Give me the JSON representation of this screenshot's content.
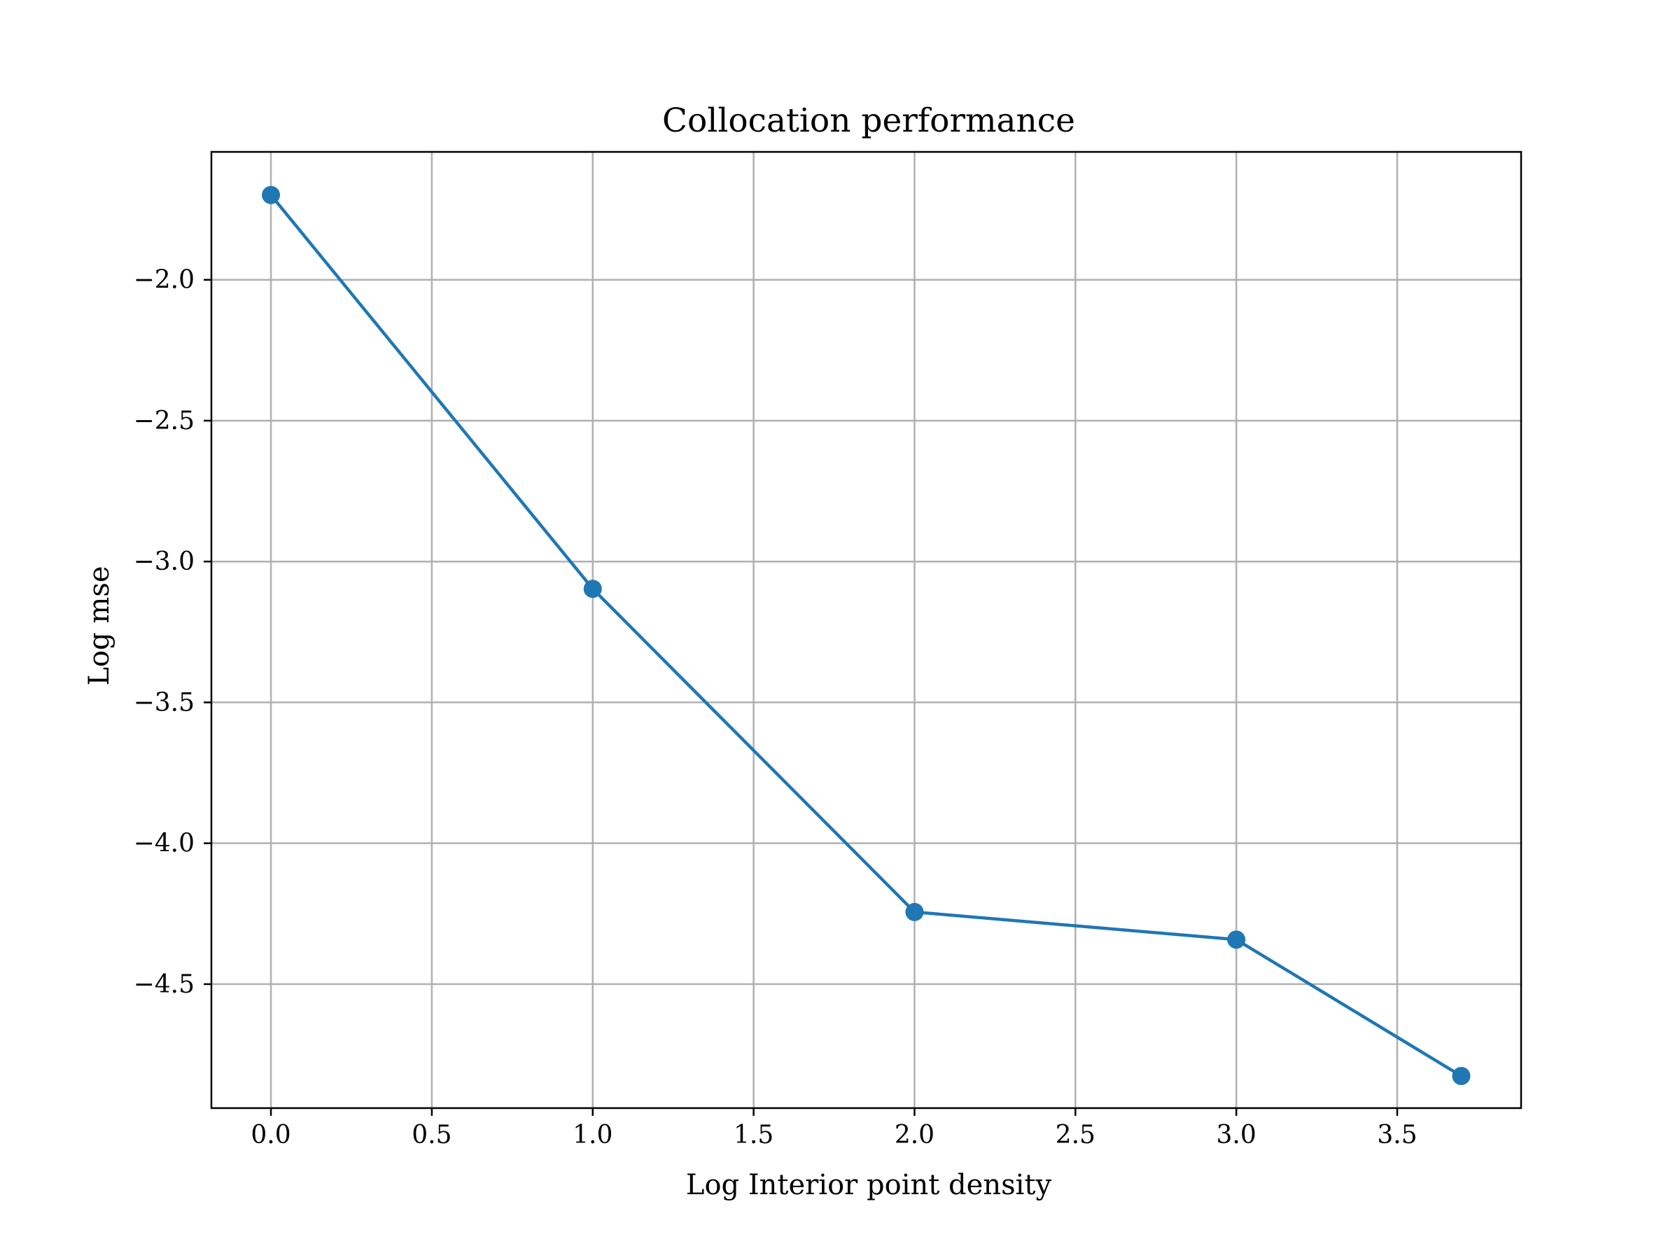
{
  "chart_data": {
    "type": "line",
    "title": "Collocation performance",
    "xlabel": "Log Interior point density",
    "ylabel": "Log mse",
    "xlim": [
      -0.185,
      3.885
    ],
    "ylim": [
      -4.94,
      -1.546
    ],
    "xticks": [
      0.0,
      0.5,
      1.0,
      1.5,
      2.0,
      2.5,
      3.0,
      3.5
    ],
    "xtick_labels": [
      "0.0",
      "0.5",
      "1.0",
      "1.5",
      "2.0",
      "2.5",
      "3.0",
      "3.5"
    ],
    "yticks": [
      -2.0,
      -2.5,
      -3.0,
      -3.5,
      -4.0,
      -4.5
    ],
    "ytick_labels": [
      "−2.0",
      "−2.5",
      "−3.0",
      "−3.5",
      "−4.0",
      "−4.5"
    ],
    "grid": true,
    "marker": "circle",
    "series": [
      {
        "x": [
          0.0,
          1.0,
          2.0,
          3.0,
          3.699
        ],
        "y": [
          -1.699,
          -3.097,
          -4.244,
          -4.342,
          -4.826
        ],
        "color": "#1f77b4"
      }
    ],
    "colors": {
      "line": "#1f77b4",
      "grid": "#b0b0b0",
      "axes": "#000000",
      "background": "#ffffff"
    }
  }
}
